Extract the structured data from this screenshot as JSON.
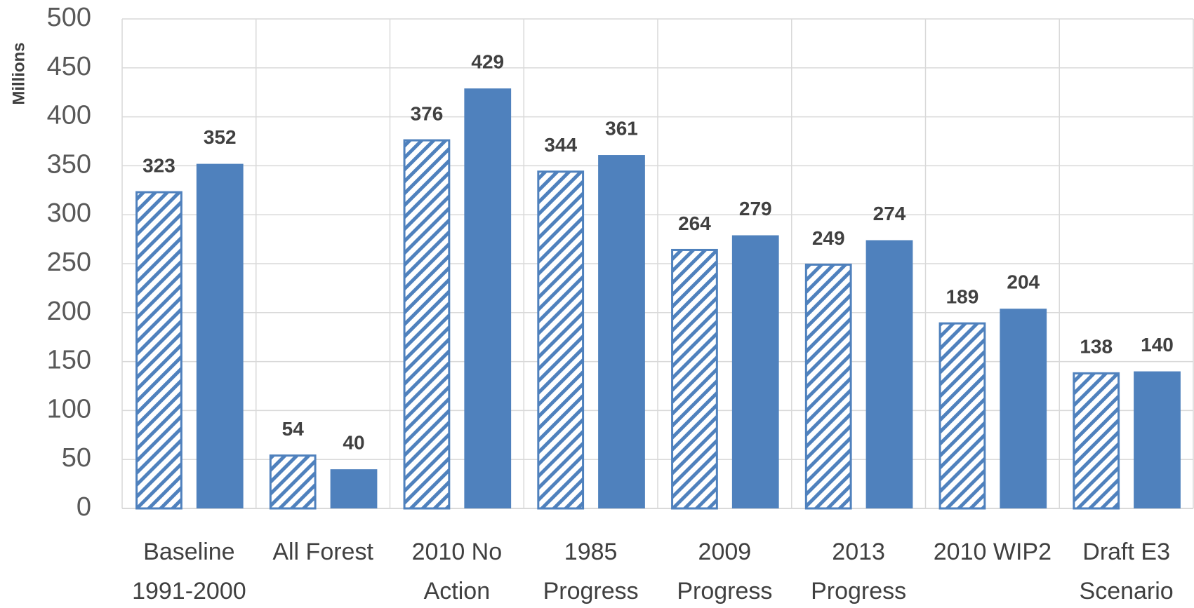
{
  "chart_data": {
    "type": "bar",
    "y_label": "Millions",
    "categories": [
      [
        "Baseline",
        "1991-2000"
      ],
      [
        "All Forest"
      ],
      [
        "2010 No",
        "Action"
      ],
      [
        "1985",
        "Progress"
      ],
      [
        "2009",
        "Progress"
      ],
      [
        "2013",
        "Progress"
      ],
      [
        "2010 WIP2"
      ],
      [
        "Draft E3",
        "Scenario"
      ]
    ],
    "series": [
      {
        "color": "#4f81bd",
        "pattern": "hatch",
        "values": [
          323,
          54,
          376,
          344,
          264,
          249,
          189,
          138
        ]
      },
      {
        "color": "#4f81bd",
        "pattern": "solid",
        "values": [
          352,
          40,
          429,
          361,
          279,
          274,
          204,
          140
        ]
      }
    ],
    "ylim": [
      0,
      500
    ],
    "yticks": [
      0,
      50,
      100,
      150,
      200,
      250,
      300,
      350,
      400,
      450,
      500
    ],
    "grid": true
  }
}
